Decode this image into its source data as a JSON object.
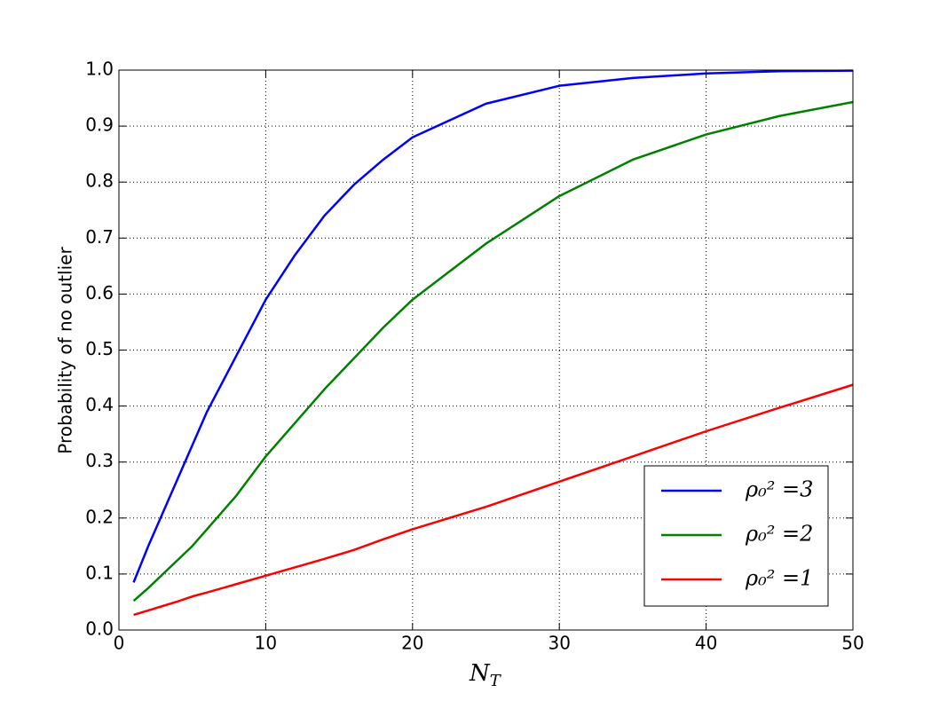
{
  "chart_data": {
    "type": "line",
    "ylabel": "Probability of no outlier",
    "xlabel": {
      "base": "N",
      "sub": "T"
    },
    "x": [
      1,
      2,
      3,
      4,
      5,
      6,
      8,
      10,
      12,
      14,
      16,
      18,
      20,
      25,
      30,
      35,
      40,
      45,
      50
    ],
    "series": [
      {
        "name": "ρ₀² =3",
        "color": "#0000ff",
        "values": [
          0.085,
          0.15,
          0.21,
          0.27,
          0.33,
          0.39,
          0.49,
          0.59,
          0.67,
          0.74,
          0.795,
          0.84,
          0.88,
          0.94,
          0.972,
          0.986,
          0.994,
          0.998,
          0.999
        ]
      },
      {
        "name": "ρ₀² =2",
        "color": "#008000",
        "values": [
          0.052,
          0.075,
          0.1,
          0.125,
          0.15,
          0.18,
          0.24,
          0.31,
          0.37,
          0.43,
          0.485,
          0.54,
          0.59,
          0.69,
          0.775,
          0.84,
          0.885,
          0.918,
          0.943
        ]
      },
      {
        "name": "ρ₀² =1",
        "color": "#ff0000",
        "values": [
          0.027,
          0.035,
          0.043,
          0.051,
          0.06,
          0.067,
          0.082,
          0.097,
          0.112,
          0.127,
          0.143,
          0.162,
          0.18,
          0.22,
          0.265,
          0.31,
          0.355,
          0.397,
          0.438
        ]
      }
    ],
    "xlim": [
      0,
      50
    ],
    "xticks": [
      0,
      10,
      20,
      30,
      40,
      50
    ],
    "ylim": [
      0,
      1
    ],
    "yticks": [
      {
        "value": 0,
        "label": "0.0"
      },
      {
        "value": 0.1,
        "label": "0.1"
      },
      {
        "value": 0.2,
        "label": "0.2"
      },
      {
        "value": 0.3,
        "label": "0.3"
      },
      {
        "value": 0.4,
        "label": "0.4"
      },
      {
        "value": 0.5,
        "label": "0.5"
      },
      {
        "value": 0.6,
        "label": "0.6"
      },
      {
        "value": 0.7,
        "label": "0.7"
      },
      {
        "value": 0.8,
        "label": "0.8"
      },
      {
        "value": 0.9,
        "label": "0.9"
      },
      {
        "value": 1,
        "label": "1.0"
      }
    ],
    "grid": true,
    "legend": "lower right"
  }
}
